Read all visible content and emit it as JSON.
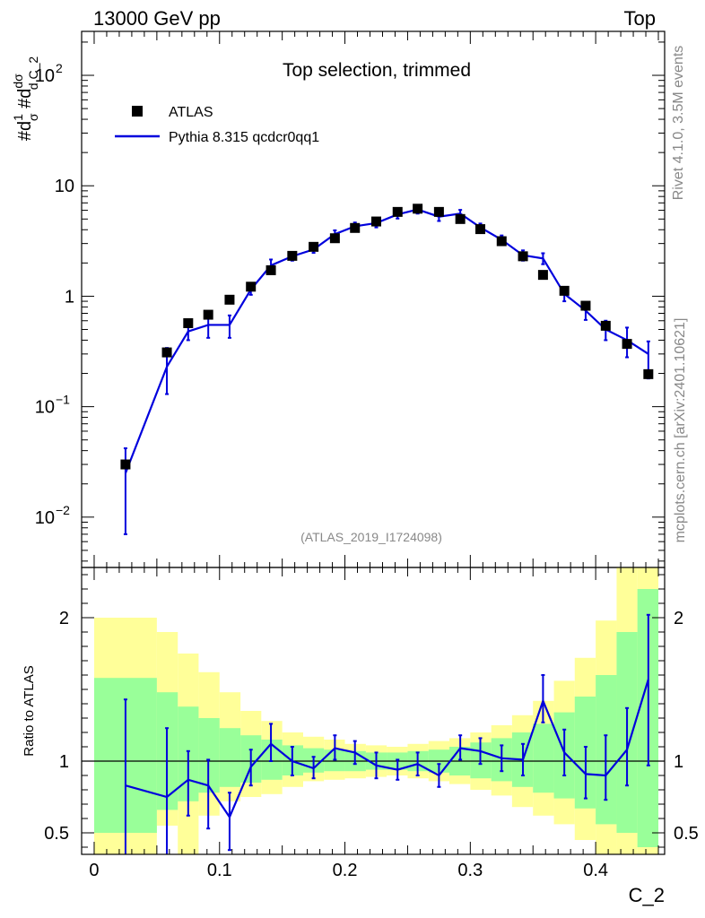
{
  "header": {
    "left": "13000 GeV pp",
    "right": "Top"
  },
  "side_labels": {
    "rivet": "Rivet 4.1.0,  3.5M events",
    "mcplots": "mcplots.cern.ch [arXiv:2401.10621]"
  },
  "chart_data": [
    {
      "type": "scatter",
      "panel": "main",
      "title": "Top selection, trimmed",
      "analysis_id": "(ATLAS_2019_I1724098)",
      "xlabel": "C_2",
      "ylabel": "#d1/σ #d dσ/d C_2",
      "yscale": "log",
      "xlim": [
        -0.01,
        0.455
      ],
      "ylim": [
        0.0035,
        250
      ],
      "yticks": [
        {
          "value": 0.01,
          "label": "10",
          "sup": "−2"
        },
        {
          "value": 0.1,
          "label": "10",
          "sup": "−1"
        },
        {
          "value": 1,
          "label": "1",
          "sup": ""
        },
        {
          "value": 10,
          "label": "10",
          "sup": ""
        },
        {
          "value": 100,
          "label": "10",
          "sup": "2"
        }
      ],
      "legend": {
        "position": "top-left",
        "entries": [
          {
            "label": "ATLAS",
            "marker": "square",
            "color": "#000000"
          },
          {
            "label": "Pythia 8.315 qcdcr0qq1",
            "marker": "line",
            "color": "#0000dd"
          }
        ]
      },
      "x": [
        0.025,
        0.058,
        0.075,
        0.091,
        0.108,
        0.125,
        0.141,
        0.158,
        0.175,
        0.192,
        0.208,
        0.225,
        0.242,
        0.258,
        0.275,
        0.292,
        0.308,
        0.325,
        0.342,
        0.358,
        0.375,
        0.392,
        0.408,
        0.425,
        0.442
      ],
      "series": [
        {
          "name": "ATLAS",
          "color": "#000000",
          "values": [
            0.03,
            0.31,
            0.57,
            0.68,
            0.93,
            1.22,
            1.72,
            2.32,
            2.8,
            3.35,
            4.15,
            4.75,
            5.8,
            6.2,
            5.8,
            5.0,
            4.05,
            3.15,
            2.3,
            1.56,
            1.12,
            0.82,
            0.54,
            0.37,
            0.197
          ]
        },
        {
          "name": "Pythia 8.315 qcdcr0qq1",
          "color": "#0000dd",
          "values": [
            0.025,
            0.23,
            0.48,
            0.55,
            0.55,
            1.15,
            1.9,
            2.3,
            2.65,
            3.65,
            4.3,
            4.6,
            5.5,
            6.1,
            5.25,
            5.6,
            4.2,
            3.25,
            2.35,
            2.2,
            1.05,
            0.74,
            0.5,
            0.4,
            0.3
          ],
          "err_low": [
            0.018,
            0.1,
            0.08,
            0.13,
            0.13,
            0.12,
            0.25,
            0.2,
            0.18,
            0.3,
            0.35,
            0.4,
            0.45,
            0.5,
            0.45,
            0.45,
            0.35,
            0.3,
            0.25,
            0.25,
            0.15,
            0.13,
            0.1,
            0.12,
            0.12
          ],
          "err_high": [
            0.017,
            0.11,
            0.07,
            0.14,
            0.12,
            0.12,
            0.25,
            0.2,
            0.18,
            0.3,
            0.35,
            0.4,
            0.45,
            0.5,
            0.45,
            0.45,
            0.35,
            0.3,
            0.25,
            0.25,
            0.15,
            0.12,
            0.1,
            0.12,
            0.09
          ]
        }
      ]
    },
    {
      "type": "line",
      "panel": "ratio",
      "ylabel": "Ratio to ATLAS",
      "xlabel": "C_2",
      "xlim": [
        -0.01,
        0.455
      ],
      "ylim": [
        0.35,
        2.35
      ],
      "reference_line": 1,
      "xticks": [
        {
          "value": 0,
          "label": "0"
        },
        {
          "value": 0.1,
          "label": "0.1"
        },
        {
          "value": 0.2,
          "label": "0.2"
        },
        {
          "value": 0.3,
          "label": "0.3"
        },
        {
          "value": 0.4,
          "label": "0.4"
        }
      ],
      "yticks": [
        {
          "value": 0.5,
          "label": "0.5"
        },
        {
          "value": 1,
          "label": "1"
        },
        {
          "value": 2,
          "label": "2"
        }
      ],
      "bin_edges": [
        0.0,
        0.05,
        0.0667,
        0.0833,
        0.1,
        0.1167,
        0.1333,
        0.15,
        0.1667,
        0.1833,
        0.2,
        0.2167,
        0.2333,
        0.25,
        0.2667,
        0.2833,
        0.3,
        0.3167,
        0.3333,
        0.35,
        0.3667,
        0.3833,
        0.4,
        0.4167,
        0.4333,
        0.45
      ],
      "band_outer": {
        "color": "#ffff99",
        "low": [
          0.35,
          0.55,
          0.35,
          0.62,
          0.72,
          0.75,
          0.77,
          0.82,
          0.86,
          0.87,
          0.88,
          0.89,
          0.9,
          0.88,
          0.86,
          0.84,
          0.8,
          0.76,
          0.68,
          0.62,
          0.56,
          0.45,
          0.35,
          0.35,
          0.35
        ],
        "high": [
          2.0,
          1.9,
          1.75,
          1.62,
          1.48,
          1.35,
          1.28,
          1.2,
          1.17,
          1.15,
          1.12,
          1.11,
          1.1,
          1.12,
          1.14,
          1.16,
          1.2,
          1.25,
          1.32,
          1.42,
          1.56,
          1.72,
          1.98,
          2.35,
          2.35
        ]
      },
      "band_inner": {
        "color": "#99ff99",
        "low": [
          0.5,
          0.66,
          0.72,
          0.78,
          0.82,
          0.85,
          0.87,
          0.9,
          0.92,
          0.93,
          0.93,
          0.94,
          0.94,
          0.93,
          0.92,
          0.9,
          0.88,
          0.86,
          0.82,
          0.78,
          0.74,
          0.67,
          0.56,
          0.5,
          0.4
        ],
        "high": [
          1.58,
          1.48,
          1.38,
          1.3,
          1.23,
          1.18,
          1.15,
          1.11,
          1.09,
          1.08,
          1.07,
          1.06,
          1.06,
          1.07,
          1.08,
          1.1,
          1.13,
          1.16,
          1.2,
          1.26,
          1.34,
          1.45,
          1.6,
          1.9,
          2.2
        ]
      },
      "series": [
        {
          "name": "Pythia 8.315 qcdcr0qq1",
          "color": "#0000dd",
          "x": [
            0.025,
            0.058,
            0.075,
            0.091,
            0.108,
            0.125,
            0.141,
            0.158,
            0.175,
            0.192,
            0.208,
            0.225,
            0.242,
            0.258,
            0.275,
            0.292,
            0.308,
            0.325,
            0.342,
            0.358,
            0.375,
            0.392,
            0.408,
            0.425,
            0.442
          ],
          "values": [
            0.83,
            0.75,
            0.87,
            0.83,
            0.61,
            0.96,
            1.12,
            1.0,
            0.95,
            1.09,
            1.06,
            0.97,
            0.94,
            0.98,
            0.9,
            1.09,
            1.07,
            1.02,
            1.01,
            1.42,
            1.06,
            0.91,
            0.9,
            1.08,
            1.57
          ],
          "err_low": [
            0.5,
            0.4,
            0.25,
            0.3,
            0.23,
            0.13,
            0.12,
            0.1,
            0.07,
            0.08,
            0.08,
            0.09,
            0.07,
            0.08,
            0.08,
            0.08,
            0.09,
            0.09,
            0.11,
            0.15,
            0.16,
            0.17,
            0.17,
            0.25,
            0.6
          ],
          "err_high": [
            0.6,
            0.48,
            0.2,
            0.18,
            0.17,
            0.12,
            0.14,
            0.1,
            0.08,
            0.09,
            0.08,
            0.09,
            0.07,
            0.08,
            0.08,
            0.09,
            0.09,
            0.09,
            0.11,
            0.18,
            0.16,
            0.19,
            0.28,
            0.29,
            0.45
          ]
        }
      ]
    }
  ]
}
